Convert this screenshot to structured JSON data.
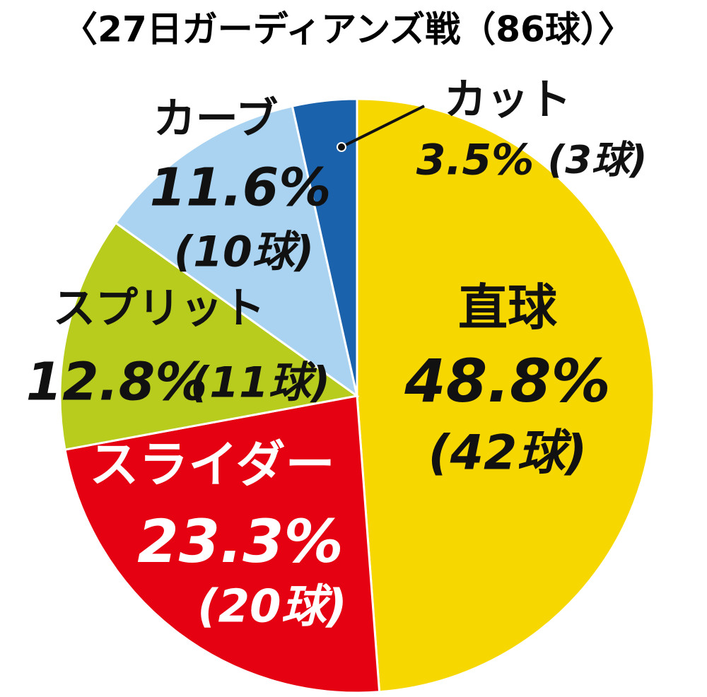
{
  "chart_data": {
    "type": "pie",
    "title": "〈27日ガーディアンズ戦（86球）〉",
    "categories": [
      "直球",
      "スライダー",
      "スプリット",
      "カーブ",
      "カット"
    ],
    "values": [
      48.8,
      23.3,
      12.8,
      11.6,
      3.5
    ],
    "value_labels": [
      "48.8%",
      "23.3%",
      "12.8%",
      "11.6%",
      "3.5%"
    ],
    "count_labels": [
      "(42球)",
      "(20球)",
      "(11球)",
      "(10球)",
      "(3球)"
    ],
    "colors": [
      "#f7d700",
      "#e50012",
      "#b7cc1c",
      "#a9d3f1",
      "#1b62ad"
    ]
  }
}
